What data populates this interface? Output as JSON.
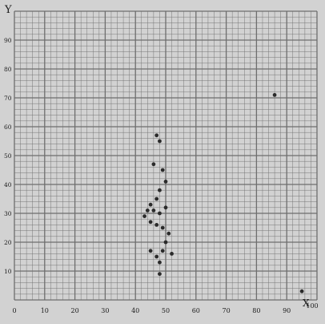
{
  "chart_data": {
    "type": "scatter",
    "title": "",
    "xlabel": "X",
    "ylabel": "Y",
    "xlim": [
      0,
      100
    ],
    "ylim": [
      0,
      100
    ],
    "x_tick_labels": [
      "0",
      "10",
      "20",
      "30",
      "40",
      "50",
      "60",
      "70",
      "80",
      "90",
      "100"
    ],
    "y_tick_labels": [
      "10",
      "20",
      "30",
      "40",
      "50",
      "60",
      "70",
      "80",
      "90"
    ],
    "grid": true,
    "colors": {
      "paper": "#d2d2d2",
      "grid": "#6e6e6e",
      "points": "#2a2a2a"
    },
    "series": [
      {
        "points": [
          [
            47,
            57
          ],
          [
            48,
            55
          ],
          [
            46,
            47
          ],
          [
            49,
            45
          ],
          [
            50,
            41
          ],
          [
            48,
            38
          ],
          [
            47,
            35
          ],
          [
            45,
            33
          ],
          [
            44,
            31
          ],
          [
            43,
            29
          ],
          [
            46,
            31
          ],
          [
            48,
            30
          ],
          [
            50,
            32
          ],
          [
            45,
            27
          ],
          [
            47,
            26
          ],
          [
            49,
            25
          ],
          [
            51,
            23
          ],
          [
            50,
            20
          ],
          [
            49,
            17
          ],
          [
            47,
            15
          ],
          [
            45,
            17
          ],
          [
            52,
            16
          ],
          [
            48,
            13
          ],
          [
            48,
            9
          ],
          [
            86,
            71
          ],
          [
            95,
            3
          ]
        ]
      }
    ]
  }
}
